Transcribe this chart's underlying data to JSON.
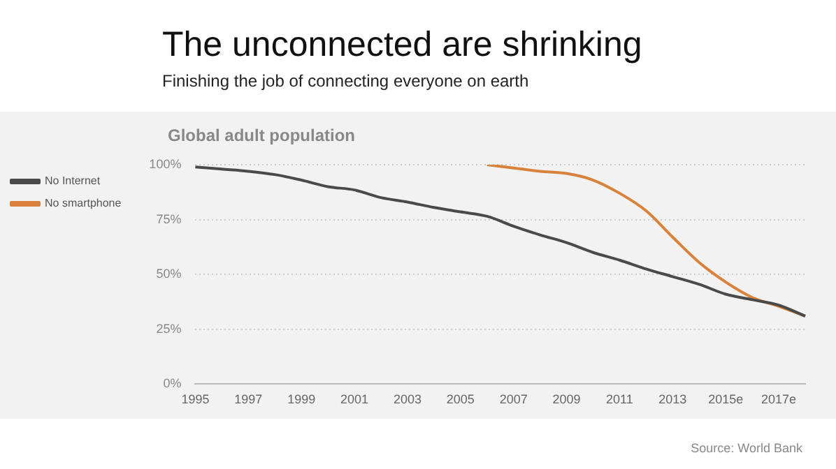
{
  "chart_data": {
    "type": "line",
    "title": "The unconnected are shrinking",
    "subtitle": "Finishing the job of connecting everyone on earth",
    "ylabel": "Global adult population",
    "categories": [
      "1995",
      null,
      "1997",
      null,
      "1999",
      null,
      "2001",
      null,
      "2003",
      null,
      "2005",
      null,
      "2007",
      null,
      "2009",
      null,
      "2011",
      null,
      "2013",
      null,
      "2015e",
      null,
      "2017e",
      null
    ],
    "series": [
      {
        "name": "No Internet",
        "color": "#4a4a4a",
        "values": [
          99,
          98,
          97,
          95.5,
          93,
          90,
          88.5,
          85,
          83,
          80.5,
          78.5,
          76.5,
          72,
          68,
          64.5,
          60,
          56.5,
          52.5,
          49,
          45.5,
          41,
          38.5,
          36,
          31
        ]
      },
      {
        "name": "No smartphone",
        "color": "#d9823b",
        "values": [
          null,
          null,
          null,
          null,
          null,
          null,
          null,
          null,
          null,
          null,
          null,
          100,
          98.5,
          97,
          96,
          93,
          87,
          79,
          67,
          55.5,
          46.5,
          39.5,
          35.5,
          31
        ]
      }
    ],
    "ylim": [
      0,
      100
    ],
    "yticks": [
      {
        "value": 0,
        "label": "0%"
      },
      {
        "value": 25,
        "label": "25%"
      },
      {
        "value": 50,
        "label": "50%"
      },
      {
        "value": 75,
        "label": "75%"
      },
      {
        "value": 100,
        "label": "100%"
      }
    ],
    "grid": "y",
    "legend": "top left",
    "marker": "none",
    "line_style": "solid",
    "annotations": [
      "Source: World Bank"
    ]
  }
}
